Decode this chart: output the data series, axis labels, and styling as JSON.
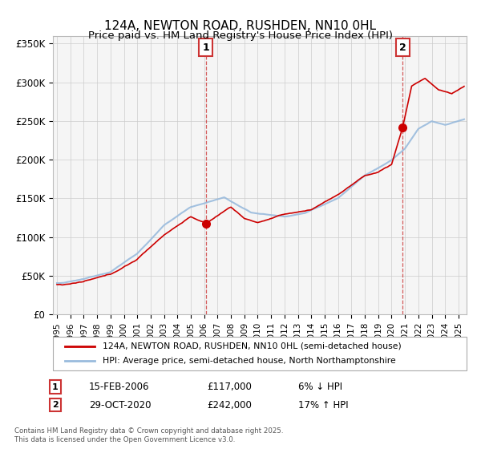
{
  "title": "124A, NEWTON ROAD, RUSHDEN, NN10 0HL",
  "subtitle": "Price paid vs. HM Land Registry's House Price Index (HPI)",
  "legend_label_red": "124A, NEWTON ROAD, RUSHDEN, NN10 0HL (semi-detached house)",
  "legend_label_blue": "HPI: Average price, semi-detached house, North Northamptonshire",
  "footnote": "Contains HM Land Registry data © Crown copyright and database right 2025.\nThis data is licensed under the Open Government Licence v3.0.",
  "sale1_label": "1",
  "sale1_date": "15-FEB-2006",
  "sale1_price": "£117,000",
  "sale1_hpi": "6% ↓ HPI",
  "sale2_label": "2",
  "sale2_date": "29-OCT-2020",
  "sale2_price": "£242,000",
  "sale2_hpi": "17% ↑ HPI",
  "ylim": [
    0,
    360000
  ],
  "yticks": [
    0,
    50000,
    100000,
    150000,
    200000,
    250000,
    300000,
    350000
  ],
  "ytick_labels": [
    "£0",
    "£50K",
    "£100K",
    "£150K",
    "£200K",
    "£250K",
    "£300K",
    "£350K"
  ],
  "color_red": "#cc0000",
  "color_blue": "#99bbdd",
  "color_dashed": "#cc3333",
  "bg_plot": "#f5f5f5",
  "bg_fig": "#ffffff",
  "sale1_x": 2006.12,
  "sale1_y": 117000,
  "sale2_x": 2020.83,
  "sale2_y": 242000,
  "xlim_left": 1994.7,
  "xlim_right": 2025.6
}
